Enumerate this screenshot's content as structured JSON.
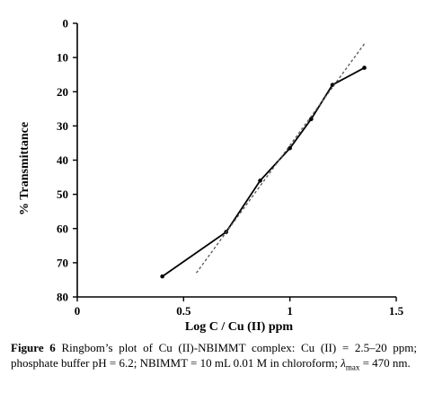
{
  "chart_data": {
    "type": "line",
    "title": "",
    "xlabel": "Log C / Cu (II) ppm",
    "ylabel": "% Transmittance",
    "xlim": [
      0,
      1.5
    ],
    "ylim": [
      0,
      80
    ],
    "y_inverted": true,
    "x_ticks": [
      "0",
      "0.5",
      "1",
      "1.5"
    ],
    "x_tick_values": [
      0,
      0.5,
      1,
      1.5
    ],
    "y_ticks": [
      "0",
      "10",
      "20",
      "30",
      "40",
      "50",
      "60",
      "70",
      "80"
    ],
    "y_tick_values": [
      0,
      10,
      20,
      30,
      40,
      50,
      60,
      70,
      80
    ],
    "grid": false,
    "series": [
      {
        "style": "solid",
        "color": "#000000",
        "markers": true,
        "x": [
          0.4,
          0.7,
          0.86,
          1.0,
          1.1,
          1.2,
          1.35
        ],
        "y": [
          74,
          61,
          46,
          36.5,
          28,
          18,
          13
        ]
      },
      {
        "style": "dashed",
        "color": "#555555",
        "markers": false,
        "x": [
          0.56,
          1.35
        ],
        "y": [
          73,
          6
        ]
      }
    ]
  },
  "caption": {
    "label": "Figure 6",
    "text": "Ringbom’s plot of Cu (II)-NBIMMT complex: Cu (II) = 2.5–20 ppm; phosphate buffer pH = 6.2; NBIMMT = 10 mL 0.01 M in chloroform;",
    "lambda_symbol": "λ",
    "lambda_subscript": "max",
    "lambda_value": "= 470 nm."
  }
}
